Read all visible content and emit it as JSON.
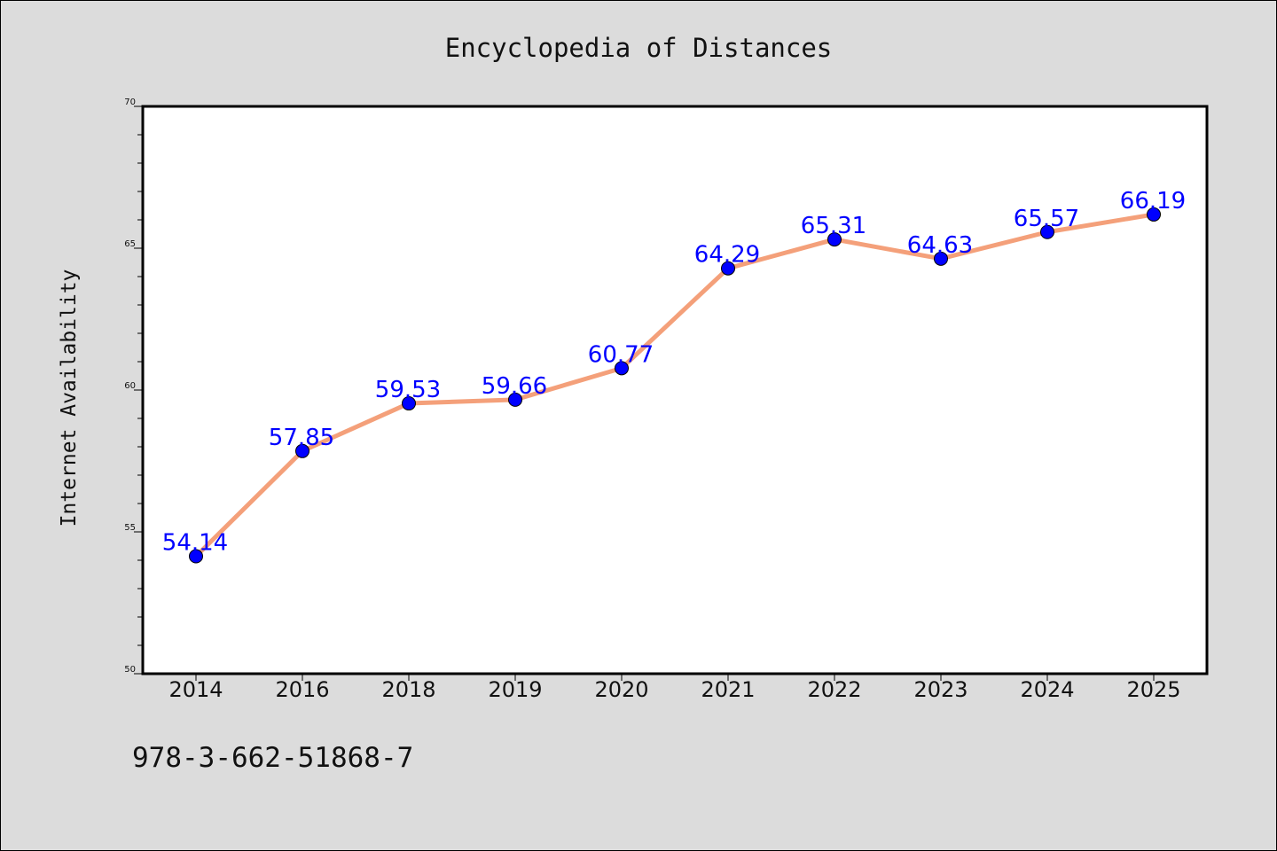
{
  "chart_data": {
    "type": "line",
    "title": "Encyclopedia of Distances",
    "ylabel": "Internet Availability",
    "xlabel": "",
    "categories": [
      "2014",
      "2016",
      "2018",
      "2019",
      "2020",
      "2021",
      "2022",
      "2023",
      "2024",
      "2025"
    ],
    "series": [
      {
        "values": [
          54.14,
          57.85,
          59.53,
          59.66,
          60.77,
          64.29,
          65.31,
          64.63,
          65.57,
          66.19
        ],
        "line_color": "#f4a07a",
        "marker_color": "#0000ff"
      }
    ],
    "data_labels": [
      "54.14",
      "57.85",
      "59.53",
      "59.66",
      "60.77",
      "64.29",
      "65.31",
      "64.63",
      "65.57",
      "66.19"
    ],
    "ylim": [
      50,
      70
    ],
    "yticks": [
      "50",
      "55",
      "60",
      "65",
      "70"
    ],
    "grid": false,
    "legend": "none"
  },
  "footer": {
    "isbn": "978-3-662-51868-7"
  },
  "colors": {
    "figure_background": "#dcdcdc",
    "plot_background": "#ffffff",
    "line": "#f4a07a",
    "marker": "#0000ff",
    "data_label": "#0000ff"
  }
}
